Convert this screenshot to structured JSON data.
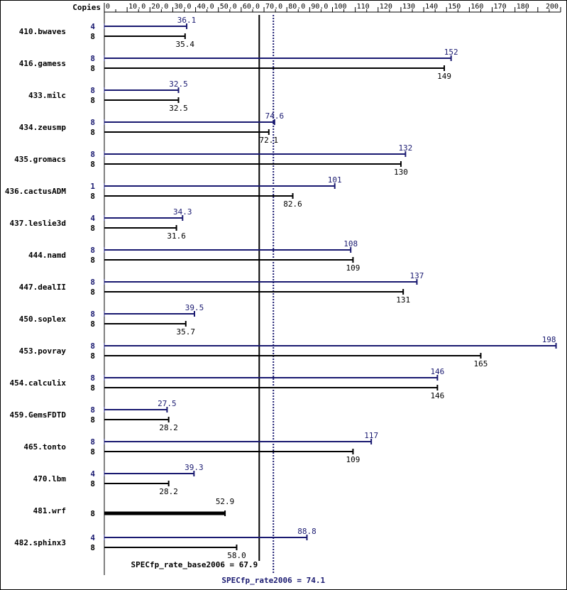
{
  "chart_data": {
    "type": "bar",
    "orientation": "horizontal",
    "axis": {
      "header": "Copies",
      "ticks": [
        {
          "value": 0,
          "label": "0"
        },
        {
          "value": 10,
          "label": "10.0"
        },
        {
          "value": 20,
          "label": "20.0"
        },
        {
          "value": 30,
          "label": "30.0"
        },
        {
          "value": 40,
          "label": "40.0"
        },
        {
          "value": 50,
          "label": "50.0"
        },
        {
          "value": 60,
          "label": "60.0"
        },
        {
          "value": 70,
          "label": "70.0"
        },
        {
          "value": 80,
          "label": "80.0"
        },
        {
          "value": 90,
          "label": "90.0"
        },
        {
          "value": 100,
          "label": "100"
        },
        {
          "value": 110,
          "label": "110"
        },
        {
          "value": 120,
          "label": "120"
        },
        {
          "value": 130,
          "label": "130"
        },
        {
          "value": 140,
          "label": "140"
        },
        {
          "value": 150,
          "label": "150"
        },
        {
          "value": 160,
          "label": "160"
        },
        {
          "value": 170,
          "label": "170"
        },
        {
          "value": 180,
          "label": "180"
        },
        {
          "value": 200,
          "label": "200"
        }
      ],
      "xlim": [
        0,
        200
      ],
      "position": "top"
    },
    "colors": {
      "peak": "#191970",
      "base": "#000000"
    },
    "benchmarks": [
      {
        "name": "410.bwaves",
        "peak_copies": "4",
        "peak": 36.1,
        "peak_label": "36.1",
        "base_copies": "8",
        "base": 35.4,
        "base_label": "35.4"
      },
      {
        "name": "416.gamess",
        "peak_copies": "8",
        "peak": 152,
        "peak_label": "152",
        "base_copies": "8",
        "base": 149,
        "base_label": "149"
      },
      {
        "name": "433.milc",
        "peak_copies": "8",
        "peak": 32.5,
        "peak_label": "32.5",
        "base_copies": "8",
        "base": 32.5,
        "base_label": "32.5"
      },
      {
        "name": "434.zeusmp",
        "peak_copies": "8",
        "peak": 74.6,
        "peak_label": "74.6",
        "base_copies": "8",
        "base": 72.1,
        "base_label": "72.1"
      },
      {
        "name": "435.gromacs",
        "peak_copies": "8",
        "peak": 132,
        "peak_label": "132",
        "base_copies": "8",
        "base": 130,
        "base_label": "130"
      },
      {
        "name": "436.cactusADM",
        "peak_copies": "1",
        "peak": 101,
        "peak_label": "101",
        "base_copies": "8",
        "base": 82.6,
        "base_label": "82.6"
      },
      {
        "name": "437.leslie3d",
        "peak_copies": "4",
        "peak": 34.3,
        "peak_label": "34.3",
        "base_copies": "8",
        "base": 31.6,
        "base_label": "31.6"
      },
      {
        "name": "444.namd",
        "peak_copies": "8",
        "peak": 108,
        "peak_label": "108",
        "base_copies": "8",
        "base": 109,
        "base_label": "109"
      },
      {
        "name": "447.dealII",
        "peak_copies": "8",
        "peak": 137,
        "peak_label": "137",
        "base_copies": "8",
        "base": 131,
        "base_label": "131"
      },
      {
        "name": "450.soplex",
        "peak_copies": "8",
        "peak": 39.5,
        "peak_label": "39.5",
        "base_copies": "8",
        "base": 35.7,
        "base_label": "35.7"
      },
      {
        "name": "453.povray",
        "peak_copies": "8",
        "peak": 198,
        "peak_label": "198",
        "base_copies": "8",
        "base": 165,
        "base_label": "165"
      },
      {
        "name": "454.calculix",
        "peak_copies": "8",
        "peak": 146,
        "peak_label": "146",
        "base_copies": "8",
        "base": 146,
        "base_label": "146"
      },
      {
        "name": "459.GemsFDTD",
        "peak_copies": "8",
        "peak": 27.5,
        "peak_label": "27.5",
        "base_copies": "8",
        "base": 28.2,
        "base_label": "28.2"
      },
      {
        "name": "465.tonto",
        "peak_copies": "8",
        "peak": 117,
        "peak_label": "117",
        "base_copies": "8",
        "base": 109,
        "base_label": "109"
      },
      {
        "name": "470.lbm",
        "peak_copies": "4",
        "peak": 39.3,
        "peak_label": "39.3",
        "base_copies": "8",
        "base": 28.2,
        "base_label": "28.2"
      },
      {
        "name": "481.wrf",
        "peak_copies": null,
        "peak": null,
        "peak_label": null,
        "base_copies": "8",
        "base": 52.9,
        "base_label": "52.9"
      },
      {
        "name": "482.sphinx3",
        "peak_copies": "4",
        "peak": 88.8,
        "peak_label": "88.8",
        "base_copies": "8",
        "base": 58.0,
        "base_label": "58.0"
      }
    ],
    "summary": {
      "base": {
        "label": "SPECfp_rate_base2006 = 67.9",
        "value": 67.9
      },
      "peak": {
        "label": "SPECfp_rate2006 = 74.1",
        "value": 74.1
      }
    }
  }
}
